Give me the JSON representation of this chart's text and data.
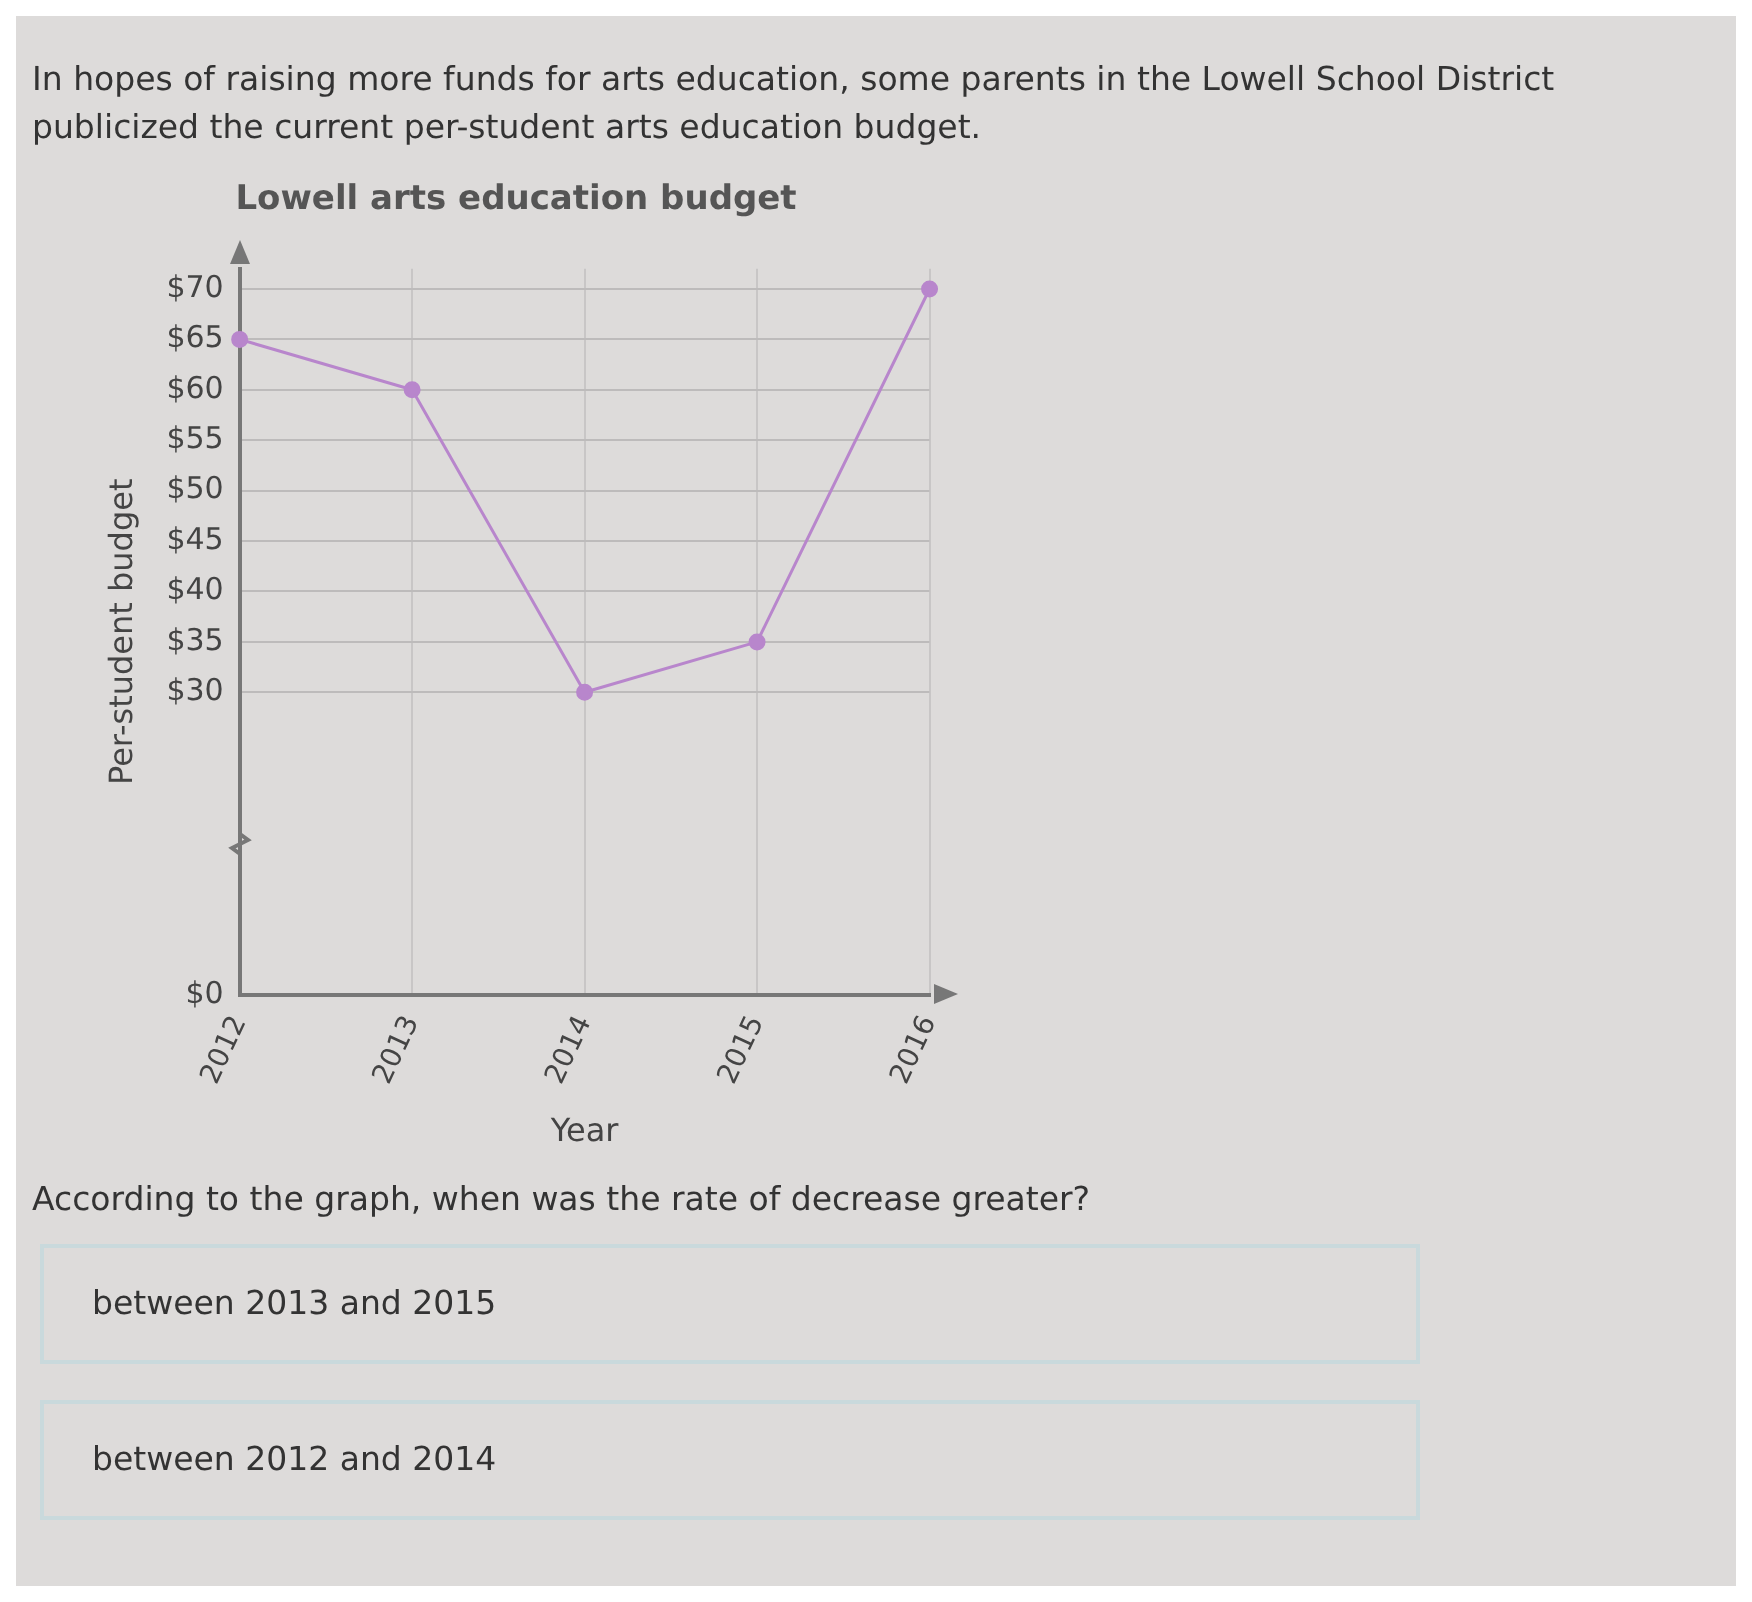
{
  "chart_data": {
    "type": "line",
    "title": "Lowell arts education budget",
    "xlabel": "Year",
    "ylabel": "Per-student budget",
    "categories": [
      "2012",
      "2013",
      "2014",
      "2015",
      "2016"
    ],
    "series": [
      {
        "color": "#b886cc",
        "values": [
          65,
          60,
          30,
          35,
          70
        ]
      }
    ],
    "ylim": [
      0,
      72
    ],
    "yticks": [
      {
        "value": 0,
        "label": "$0"
      },
      {
        "value": 30,
        "label": "$30"
      },
      {
        "value": 35,
        "label": "$35"
      },
      {
        "value": 40,
        "label": "$40"
      },
      {
        "value": 45,
        "label": "$45"
      },
      {
        "value": 50,
        "label": "$50"
      },
      {
        "value": 55,
        "label": "$55"
      },
      {
        "value": 60,
        "label": "$60"
      },
      {
        "value": 65,
        "label": "$65"
      },
      {
        "value": 70,
        "label": "$70"
      }
    ],
    "grid": true,
    "marker": "circle",
    "line_style": "solid",
    "annotations": [
      "In hopes of raising more funds for arts education, some parents in the Lowell School District publicized the current per-student arts education budget.",
      "According to the graph, when was the rate of decrease greater?",
      "between 2013 and 2015",
      "between 2012 and 2014"
    ]
  }
}
